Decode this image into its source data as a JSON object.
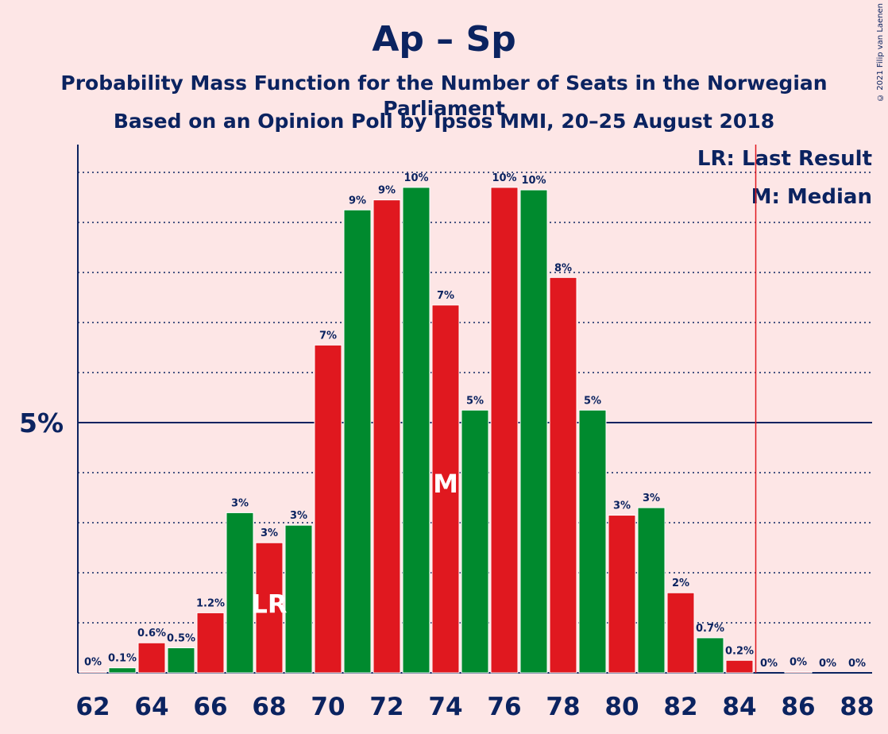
{
  "title": "Ap – Sp",
  "subtitle1": "Probability Mass Function for the Number of Seats in the Norwegian Parliament",
  "subtitle2": "Based on an Opinion Poll by Ipsos MMI, 20–25 August 2018",
  "copyright": "© 2021 Filip van Laenen",
  "legend": {
    "lr": "LR: Last Result",
    "m": "M: Median"
  },
  "colors": {
    "background": "#fde6e6",
    "red": "#e0181f",
    "green": "#008a2e",
    "axis": "#0b2360",
    "last_result_line": "#e0181f"
  },
  "chart_data": {
    "type": "bar",
    "x": [
      62,
      63,
      64,
      65,
      66,
      67,
      68,
      69,
      70,
      71,
      72,
      73,
      74,
      75,
      76,
      77,
      78,
      79,
      80,
      81,
      82,
      83,
      84,
      85,
      86,
      87,
      88
    ],
    "values": [
      0.02,
      0.1,
      0.6,
      0.5,
      1.2,
      3.2,
      2.6,
      2.95,
      6.55,
      9.25,
      9.45,
      9.7,
      7.35,
      5.25,
      9.7,
      9.65,
      7.9,
      5.25,
      3.15,
      3.3,
      1.6,
      0.7,
      0.25,
      0,
      0.02,
      0,
      0
    ],
    "labels": [
      "0%",
      "0.1%",
      "0.6%",
      "0.5%",
      "1.2%",
      "3%",
      "3%",
      "3%",
      "7%",
      "9%",
      "9%",
      "10%",
      "7%",
      "5%",
      "10%",
      "10%",
      "8%",
      "5%",
      "3%",
      "3%",
      "2%",
      "0.7%",
      "0.2%",
      "0%",
      "0%",
      "0%",
      "0%"
    ],
    "bar_colors": [
      "red",
      "green",
      "red",
      "green",
      "red",
      "green",
      "red",
      "green",
      "red",
      "green",
      "red",
      "green",
      "red",
      "green",
      "red",
      "green",
      "red",
      "green",
      "red",
      "green",
      "red",
      "green",
      "red",
      "green",
      "red",
      "green",
      "red"
    ],
    "x_ticks": [
      "62",
      "64",
      "66",
      "68",
      "70",
      "72",
      "74",
      "76",
      "78",
      "80",
      "82",
      "84",
      "86",
      "88"
    ],
    "y_tick_label": "5%",
    "y_major_value": 5,
    "y_minor_step": 1,
    "ylim": [
      0,
      10.5
    ],
    "last_result_seat": 68,
    "last_result_marker": "LR",
    "median_seat": 74,
    "median_marker": "M",
    "majority_line_after_seat": 84.5
  }
}
